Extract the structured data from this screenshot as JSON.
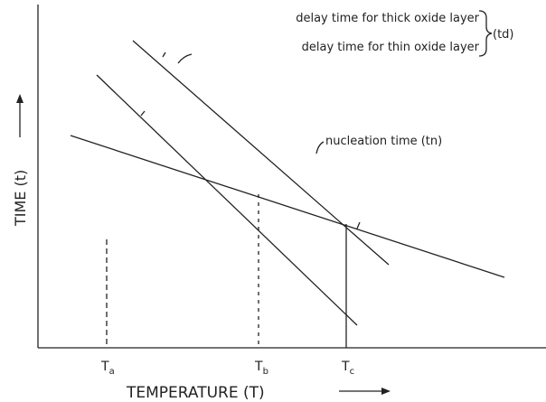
{
  "annotations": {
    "thick": "delay time for thick oxide layer",
    "thin": "delay time for thin oxide layer",
    "group": "(td)",
    "nucleation": "nucleation time (tn)"
  },
  "axes": {
    "y_label": "TIME (t)",
    "x_label": "TEMPERATURE (T)"
  },
  "ticks": [
    {
      "symbol": "T",
      "subscript": "a"
    },
    {
      "symbol": "T",
      "subscript": "b"
    },
    {
      "symbol": "T",
      "subscript": "c"
    }
  ]
}
